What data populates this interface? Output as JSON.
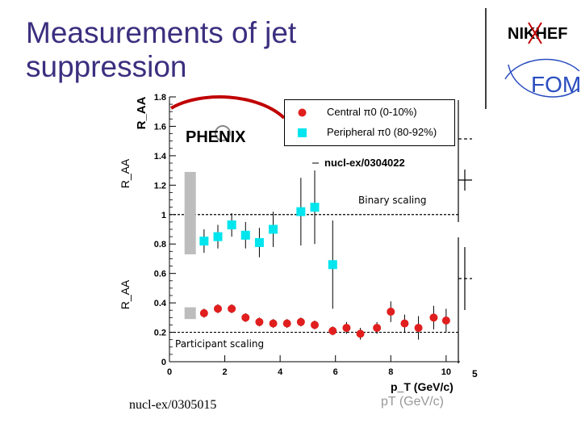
{
  "slide": {
    "title_line1": "Measurements of jet",
    "title_line2": "suppression",
    "footer_ref": "nucl-ex/0305015"
  },
  "logos": {
    "nikhef": "NIKHEF",
    "fom": "FOM"
  },
  "chart_annotations": {
    "collaboration": "PHENIX",
    "arxiv_ref": "nucl-ex/0304022",
    "binary_label": "Binary scaling",
    "participant_label": "Participant scaling",
    "ghost_axis_label": "pT (GeV/c)",
    "secondary_axis_tick": "5"
  },
  "colors": {
    "title": "#3b2f7f",
    "central": "#e11e1e",
    "peripheral": "#00e5ee",
    "uncertainty_band": "#bdbdbd"
  },
  "chart_data": {
    "type": "scatter",
    "ylabel": "R_AA",
    "xlabel": "p_T (GeV/c)",
    "xlim": [
      0,
      10.5
    ],
    "ylim": [
      0,
      1.8
    ],
    "x_ticks": [
      0,
      2,
      4,
      6,
      8,
      10
    ],
    "y_ticks": [
      0,
      0.2,
      0.4,
      0.6,
      0.8,
      1,
      1.2,
      1.4,
      1.6,
      1.8
    ],
    "reference_lines": [
      {
        "y": 1.0,
        "label": "Binary scaling"
      },
      {
        "y": 0.2,
        "label": "Participant scaling"
      }
    ],
    "legend_position": "top-right",
    "series": [
      {
        "name": "Central π0 (0-10%)",
        "marker": "circle",
        "points": [
          {
            "x": 1.25,
            "y": 0.33,
            "err": 0.03
          },
          {
            "x": 1.75,
            "y": 0.36,
            "err": 0.03
          },
          {
            "x": 2.25,
            "y": 0.36,
            "err": 0.03
          },
          {
            "x": 2.75,
            "y": 0.3,
            "err": 0.03
          },
          {
            "x": 3.25,
            "y": 0.27,
            "err": 0.03
          },
          {
            "x": 3.75,
            "y": 0.26,
            "err": 0.03
          },
          {
            "x": 4.25,
            "y": 0.26,
            "err": 0.03
          },
          {
            "x": 4.75,
            "y": 0.27,
            "err": 0.03
          },
          {
            "x": 5.25,
            "y": 0.25,
            "err": 0.03
          },
          {
            "x": 5.9,
            "y": 0.21,
            "err": 0.03
          },
          {
            "x": 6.4,
            "y": 0.23,
            "err": 0.04
          },
          {
            "x": 6.9,
            "y": 0.19,
            "err": 0.04
          },
          {
            "x": 7.5,
            "y": 0.23,
            "err": 0.04
          },
          {
            "x": 8.0,
            "y": 0.34,
            "err": 0.07
          },
          {
            "x": 8.5,
            "y": 0.26,
            "err": 0.06
          },
          {
            "x": 9.0,
            "y": 0.23,
            "err": 0.08
          },
          {
            "x": 9.55,
            "y": 0.3,
            "err": 0.08
          },
          {
            "x": 10.0,
            "y": 0.28,
            "err": 0.08
          }
        ]
      },
      {
        "name": "Peripheral π0 (80-92%)",
        "marker": "square",
        "points": [
          {
            "x": 1.25,
            "y": 0.82,
            "err": 0.08
          },
          {
            "x": 1.75,
            "y": 0.85,
            "err": 0.08
          },
          {
            "x": 2.25,
            "y": 0.93,
            "err": 0.08
          },
          {
            "x": 2.75,
            "y": 0.86,
            "err": 0.09
          },
          {
            "x": 3.25,
            "y": 0.81,
            "err": 0.1
          },
          {
            "x": 3.75,
            "y": 0.9,
            "err": 0.12
          },
          {
            "x": 4.75,
            "y": 1.02,
            "err": 0.23
          },
          {
            "x": 5.25,
            "y": 1.05,
            "err": 0.25
          },
          {
            "x": 5.9,
            "y": 0.66,
            "err": 0.3
          }
        ]
      }
    ],
    "systematic_bands": [
      {
        "series": "Peripheral π0 (80-92%)",
        "x": 0.75,
        "y_low": 0.73,
        "y_high": 1.29
      },
      {
        "series": "Central π0 (0-10%)",
        "x": 0.75,
        "y_low": 0.29,
        "y_high": 0.37
      }
    ]
  }
}
